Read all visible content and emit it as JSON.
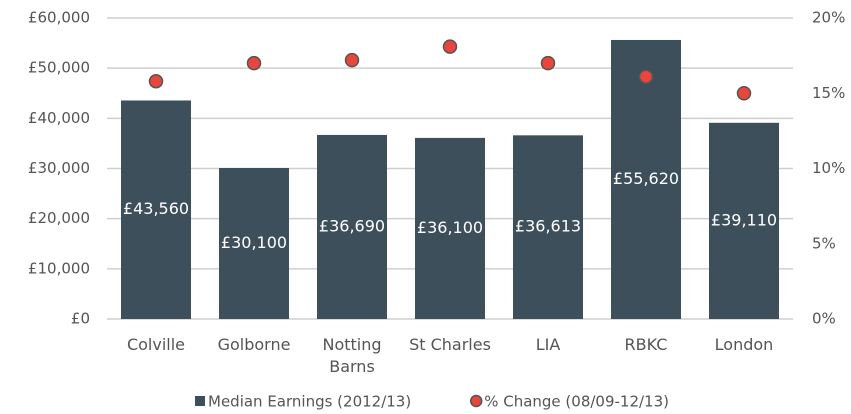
{
  "chart_data": {
    "type": "bar",
    "categories": [
      "Colville",
      "Golborne",
      "Notting Barns",
      "St Charles",
      "LIA",
      "RBKC",
      "London"
    ],
    "series": [
      {
        "name": "Median Earnings (2012/13)",
        "type": "bar",
        "color": "#3e4f5c",
        "values": [
          43560,
          30100,
          36690,
          36100,
          36613,
          55620,
          39110
        ],
        "value_labels": [
          "£43,560",
          "£30,100",
          "£36,690",
          "£36,100",
          "£36,613",
          "£55,620",
          "£39,110"
        ]
      },
      {
        "name": "% Change (08/09-12/13)",
        "type": "scatter",
        "axis": "y2",
        "color": "#e8453c",
        "values": [
          15.8,
          17.0,
          17.2,
          18.1,
          17.0,
          16.1,
          15.0
        ]
      }
    ],
    "ylim": [
      0,
      60000
    ],
    "yticks": [
      {
        "value": 0,
        "label": "£0"
      },
      {
        "value": 10000,
        "label": "£10,000"
      },
      {
        "value": 20000,
        "label": "£20,000"
      },
      {
        "value": 30000,
        "label": "£30,000"
      },
      {
        "value": 40000,
        "label": "£40,000"
      },
      {
        "value": 50000,
        "label": "£50,000"
      },
      {
        "value": 60000,
        "label": "£60,000"
      }
    ],
    "y2lim": [
      0,
      20
    ],
    "y2ticks": [
      {
        "value": 0,
        "label": "0%"
      },
      {
        "value": 5,
        "label": "5%"
      },
      {
        "value": 10,
        "label": "10%"
      },
      {
        "value": 15,
        "label": "15%"
      },
      {
        "value": 20,
        "label": "20%"
      }
    ],
    "grid": true,
    "legend": "bottom"
  }
}
